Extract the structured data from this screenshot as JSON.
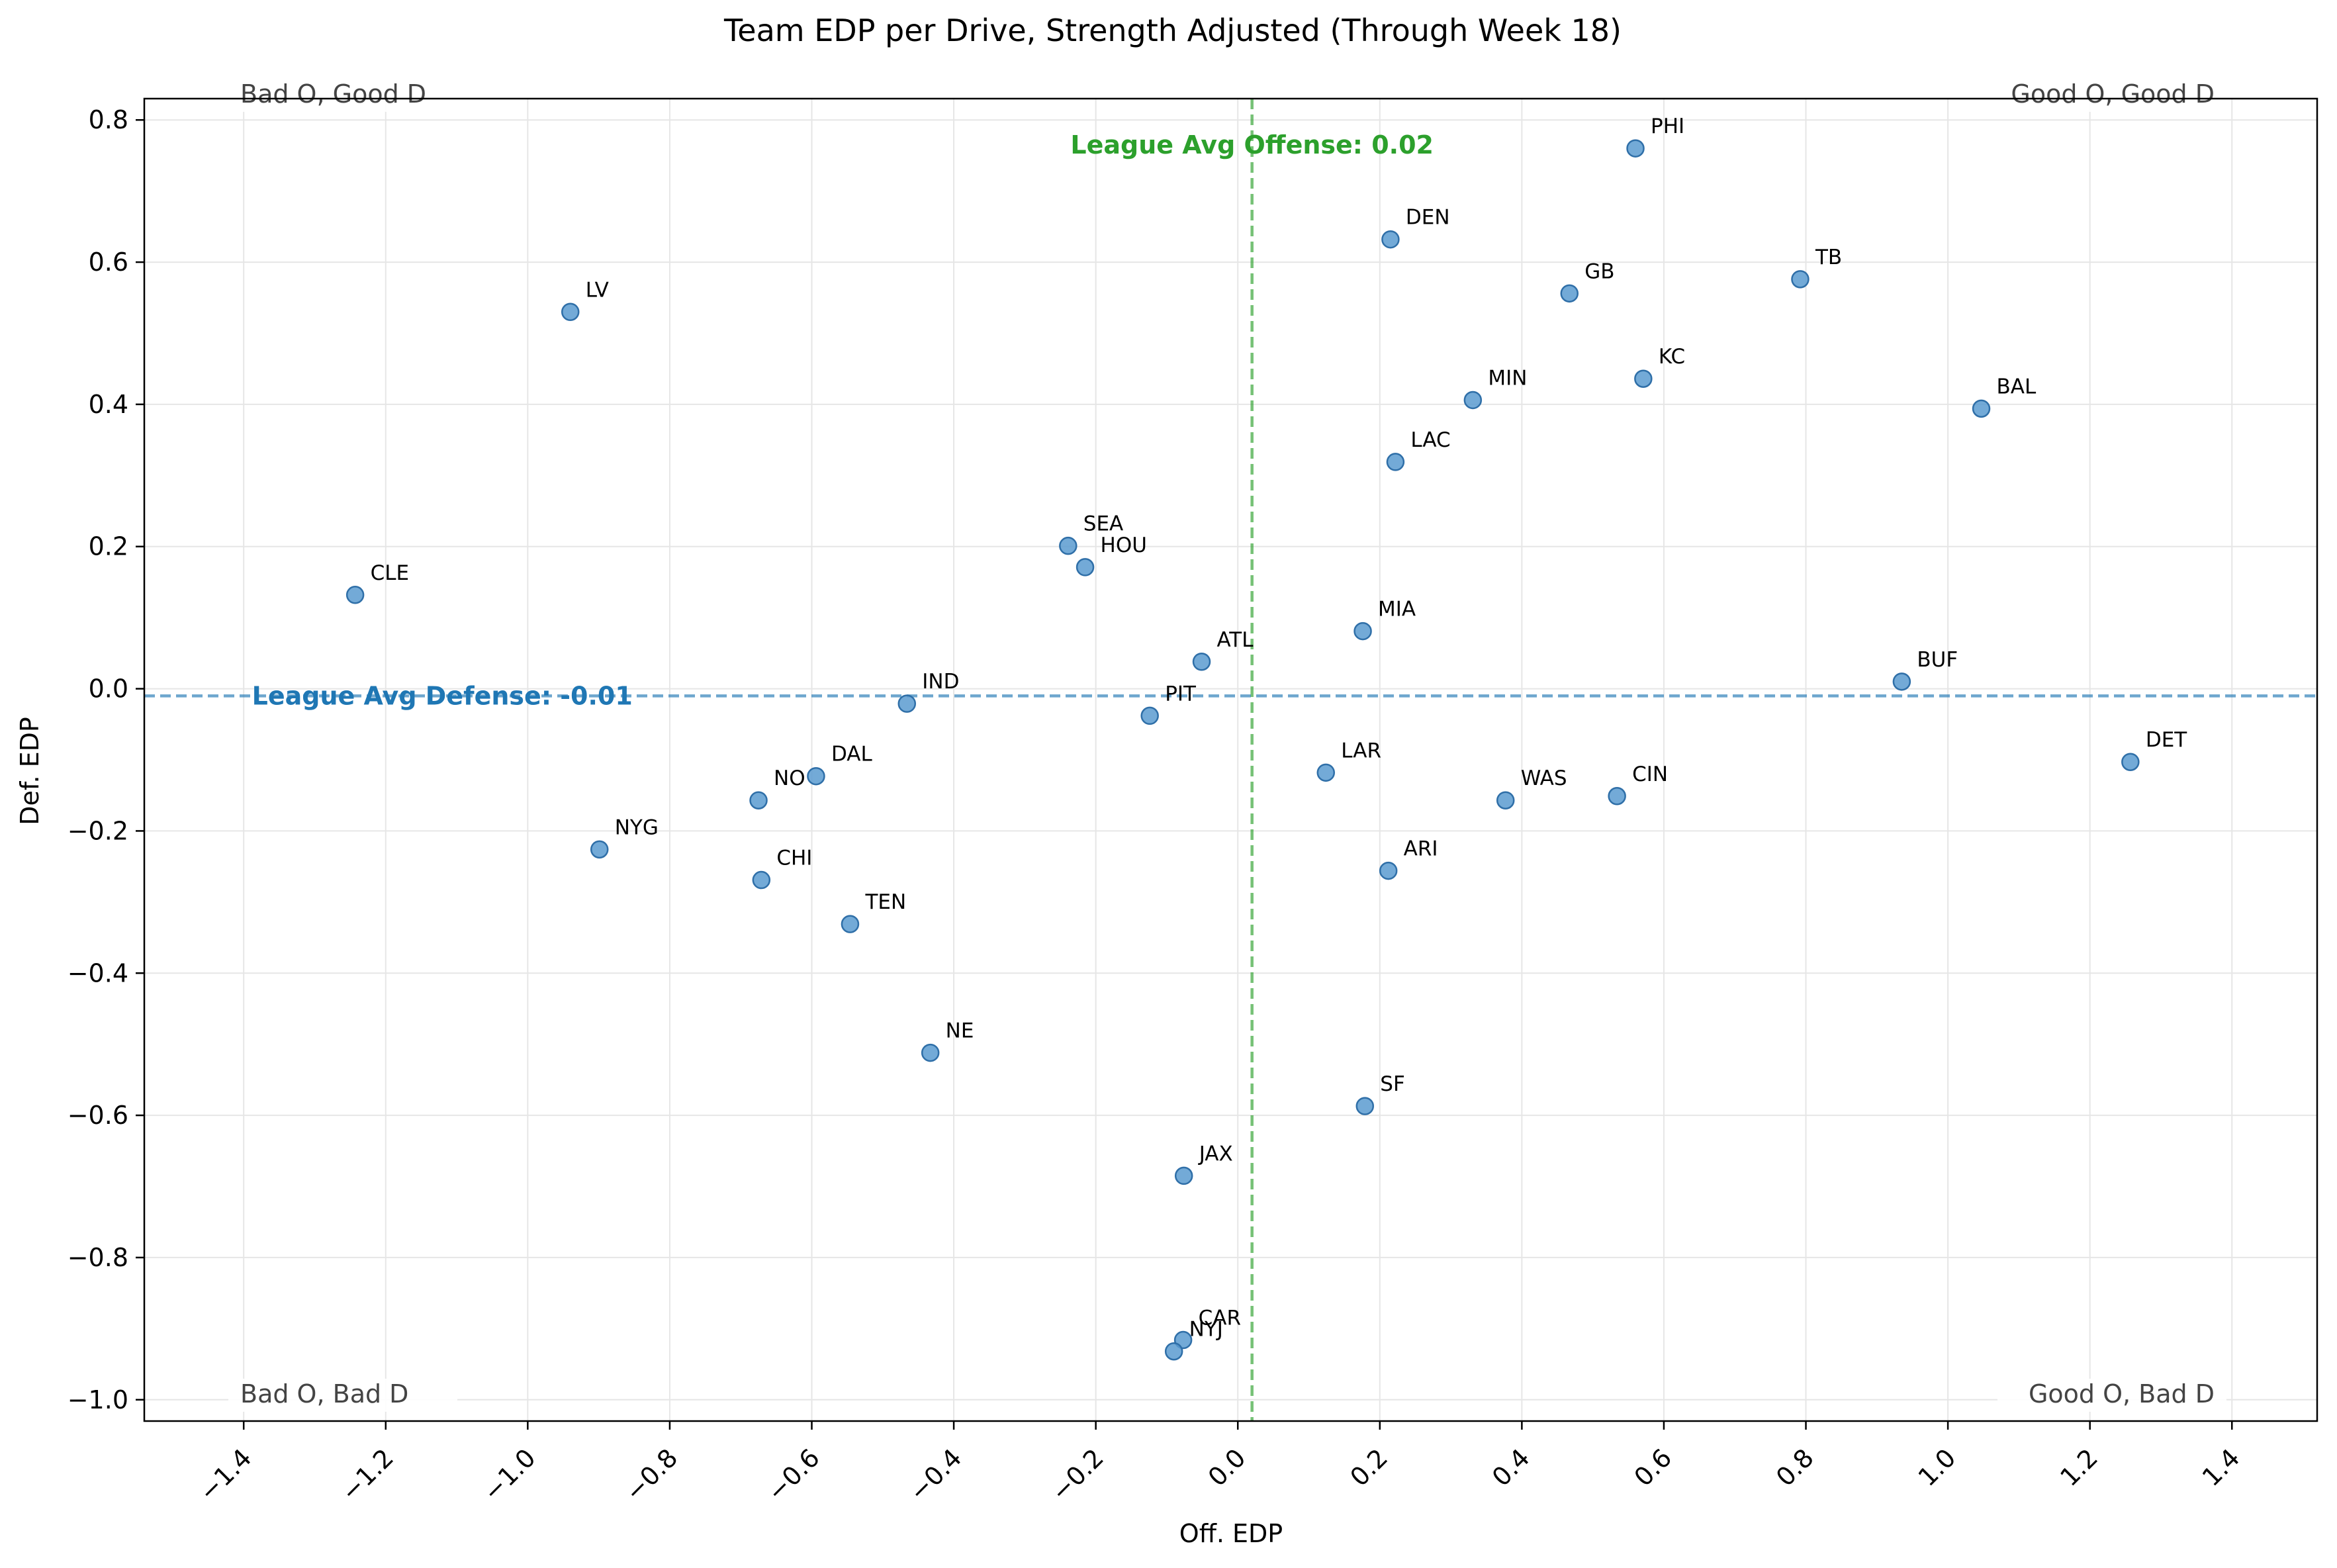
{
  "chart_data": {
    "type": "scatter",
    "title": "Team EDP per Drive, Strength Adjusted (Through Week 18)",
    "xlabel": "Off. EDP",
    "ylabel": "Def. EDP",
    "xlim": [
      -1.54,
      1.52
    ],
    "ylim": [
      -1.03,
      0.83
    ],
    "xticks": [
      -1.4,
      -1.2,
      -1.0,
      -0.8,
      -0.6,
      -0.4,
      -0.2,
      0.0,
      0.2,
      0.4,
      0.6,
      0.8,
      1.0,
      1.2,
      1.4
    ],
    "xtick_labels": [
      "−1.4",
      "−1.2",
      "−1.0",
      "−0.8",
      "−0.6",
      "−0.4",
      "−0.2",
      "0.0",
      "0.2",
      "0.4",
      "0.6",
      "0.8",
      "1.0",
      "1.2",
      "1.4"
    ],
    "yticks": [
      0.8,
      0.6,
      0.4,
      0.2,
      0.0,
      -0.2,
      -0.4,
      -0.6,
      -0.8,
      -1.0
    ],
    "ytick_labels": [
      "0.8",
      "0.6",
      "0.4",
      "0.2",
      "0.0",
      "−0.2",
      "−0.4",
      "−0.6",
      "−0.8",
      "−1.0"
    ],
    "grid": true,
    "points": [
      {
        "team": "PHI",
        "x": 0.56,
        "y": 0.76
      },
      {
        "team": "DEN",
        "x": 0.215,
        "y": 0.632
      },
      {
        "team": "GB",
        "x": 0.467,
        "y": 0.556
      },
      {
        "team": "TB",
        "x": 0.792,
        "y": 0.576
      },
      {
        "team": "LV",
        "x": -0.94,
        "y": 0.53
      },
      {
        "team": "KC",
        "x": 0.571,
        "y": 0.436
      },
      {
        "team": "MIN",
        "x": 0.331,
        "y": 0.406
      },
      {
        "team": "BAL",
        "x": 1.047,
        "y": 0.394
      },
      {
        "team": "LAC",
        "x": 0.222,
        "y": 0.319
      },
      {
        "team": "SEA",
        "x": -0.239,
        "y": 0.201
      },
      {
        "team": "HOU",
        "x": -0.215,
        "y": 0.171
      },
      {
        "team": "CLE",
        "x": -1.243,
        "y": 0.132
      },
      {
        "team": "MIA",
        "x": 0.176,
        "y": 0.081
      },
      {
        "team": "ATL",
        "x": -0.051,
        "y": 0.038
      },
      {
        "team": "BUF",
        "x": 0.935,
        "y": 0.01
      },
      {
        "team": "IND",
        "x": -0.466,
        "y": -0.021
      },
      {
        "team": "PIT",
        "x": -0.124,
        "y": -0.038
      },
      {
        "team": "DET",
        "x": 1.257,
        "y": -0.103
      },
      {
        "team": "LAR",
        "x": 0.124,
        "y": -0.118
      },
      {
        "team": "DAL",
        "x": -0.594,
        "y": -0.123
      },
      {
        "team": "CIN",
        "x": 0.534,
        "y": -0.151
      },
      {
        "team": "WAS",
        "x": 0.377,
        "y": -0.157
      },
      {
        "team": "NO",
        "x": -0.675,
        "y": -0.157
      },
      {
        "team": "NYG",
        "x": -0.899,
        "y": -0.226
      },
      {
        "team": "ARI",
        "x": 0.212,
        "y": -0.256
      },
      {
        "team": "CHI",
        "x": -0.671,
        "y": -0.269
      },
      {
        "team": "TEN",
        "x": -0.546,
        "y": -0.331
      },
      {
        "team": "NE",
        "x": -0.433,
        "y": -0.512
      },
      {
        "team": "SF",
        "x": 0.179,
        "y": -0.587
      },
      {
        "team": "JAX",
        "x": -0.076,
        "y": -0.685
      },
      {
        "team": "CAR",
        "x": -0.077,
        "y": -0.916
      },
      {
        "team": "NYJ",
        "x": -0.09,
        "y": -0.932
      }
    ],
    "point_color": "#5b9bd0",
    "reference_lines": [
      {
        "orientation": "vertical",
        "value": 0.02,
        "color": "#2ca02c",
        "label": "League Avg Offense: 0.02"
      },
      {
        "orientation": "horizontal",
        "value": -0.01,
        "color": "#1f77b4",
        "label": "League Avg Defense: -0.01"
      }
    ],
    "quadrant_labels": {
      "top_left": "Bad O, Good D",
      "top_right": "Good O, Good D",
      "bottom_left": "Bad O, Bad D",
      "bottom_right": "Good O, Bad D"
    }
  }
}
